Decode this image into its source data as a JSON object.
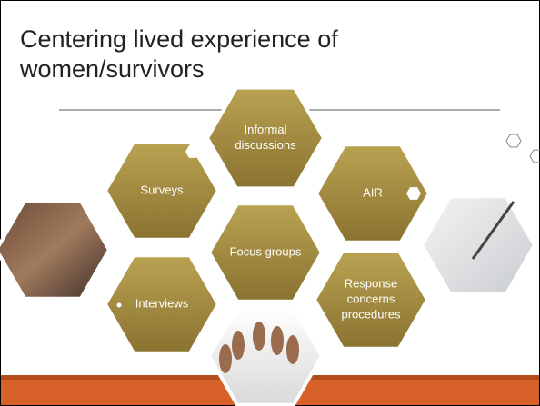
{
  "title": {
    "lines": [
      "Centering lived experience of",
      "women/survivors"
    ]
  },
  "hexagons": [
    {
      "lines": [
        "Informal",
        "discussions"
      ]
    },
    {
      "lines": [
        "Surveys"
      ]
    },
    {
      "lines": [
        "AIR"
      ]
    },
    {
      "lines": [
        "Focus groups"
      ]
    },
    {
      "lines": [
        "Interviews"
      ]
    },
    {
      "lines": [
        "Response",
        "concerns",
        "procedures"
      ]
    }
  ]
}
